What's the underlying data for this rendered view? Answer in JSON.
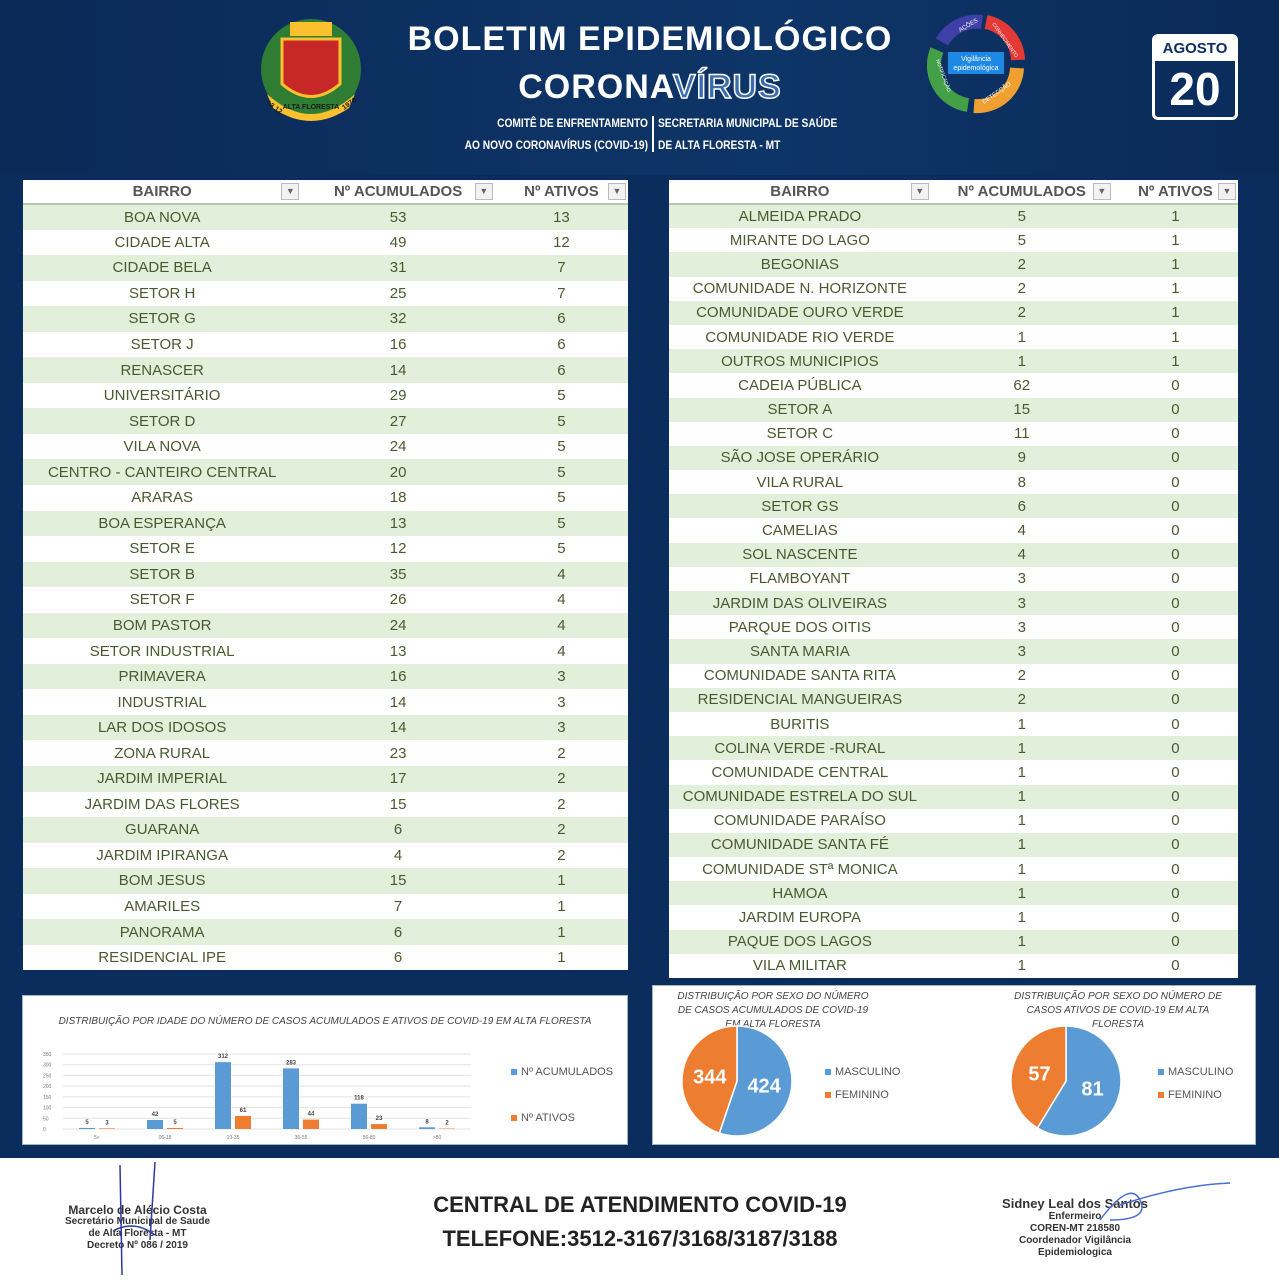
{
  "header": {
    "title_line1": "BOLETIM EPIDEMIOLÓGICO",
    "title_line2_solid": "CORONA",
    "title_line2_outline": "VÍRUS",
    "sub_left": [
      "COMITÊ DE ENFRENTAMENTO",
      "AO NOVO CORONAVÍRUS (COVID-19)"
    ],
    "sub_right": [
      "SECRETARIA MUNICIPAL DE SAÚDE",
      "DE ALTA FLORESTA - MT"
    ],
    "crest_text": [
      "1976",
      "ALTA FLORESTA",
      "13 12"
    ],
    "cycle_center": "Vigilância epidemológica",
    "cycle_steps": [
      "AÇÕES",
      "CONHECIMENTO",
      "DETECÇÃO",
      "NOTIFICAÇÃO"
    ],
    "calendar": {
      "month": "AGOSTO",
      "day": "20"
    }
  },
  "table_headers": [
    "BAIRRO",
    "Nº ACUMULADOS",
    "Nº ATIVOS"
  ],
  "table_left": [
    [
      "BOA NOVA",
      53,
      13
    ],
    [
      "CIDADE ALTA",
      49,
      12
    ],
    [
      "CIDADE BELA",
      31,
      7
    ],
    [
      "SETOR H",
      25,
      7
    ],
    [
      "SETOR G",
      32,
      6
    ],
    [
      "SETOR J",
      16,
      6
    ],
    [
      "RENASCER",
      14,
      6
    ],
    [
      "UNIVERSITÁRIO",
      29,
      5
    ],
    [
      "SETOR D",
      27,
      5
    ],
    [
      "VILA NOVA",
      24,
      5
    ],
    [
      "CENTRO - CANTEIRO CENTRAL",
      20,
      5
    ],
    [
      "ARARAS",
      18,
      5
    ],
    [
      "BOA ESPERANÇA",
      13,
      5
    ],
    [
      "SETOR E",
      12,
      5
    ],
    [
      "SETOR B",
      35,
      4
    ],
    [
      "SETOR F",
      26,
      4
    ],
    [
      "BOM PASTOR",
      24,
      4
    ],
    [
      "SETOR INDUSTRIAL",
      13,
      4
    ],
    [
      "PRIMAVERA",
      16,
      3
    ],
    [
      "INDUSTRIAL",
      14,
      3
    ],
    [
      "LAR DOS IDOSOS",
      14,
      3
    ],
    [
      "ZONA RURAL",
      23,
      2
    ],
    [
      "JARDIM IMPERIAL",
      17,
      2
    ],
    [
      "JARDIM DAS FLORES",
      15,
      2
    ],
    [
      "GUARANA",
      6,
      2
    ],
    [
      "JARDIM IPIRANGA",
      4,
      2
    ],
    [
      "BOM JESUS",
      15,
      1
    ],
    [
      "AMARILES",
      7,
      1
    ],
    [
      "PANORAMA",
      6,
      1
    ],
    [
      "RESIDENCIAL IPE",
      6,
      1
    ]
  ],
  "table_right": [
    [
      "ALMEIDA PRADO",
      5,
      1
    ],
    [
      "MIRANTE DO LAGO",
      5,
      1
    ],
    [
      "BEGONIAS",
      2,
      1
    ],
    [
      "COMUNIDADE N. HORIZONTE",
      2,
      1
    ],
    [
      "COMUNIDADE OURO VERDE",
      2,
      1
    ],
    [
      "COMUNIDADE RIO VERDE",
      1,
      1
    ],
    [
      "OUTROS MUNICIPIOS",
      1,
      1
    ],
    [
      "CADEIA PÚBLICA",
      62,
      0
    ],
    [
      "SETOR A",
      15,
      0
    ],
    [
      "SETOR C",
      11,
      0
    ],
    [
      "SÃO JOSE OPERÁRIO",
      9,
      0
    ],
    [
      "VILA RURAL",
      8,
      0
    ],
    [
      "SETOR GS",
      6,
      0
    ],
    [
      "CAMELIAS",
      4,
      0
    ],
    [
      "SOL NASCENTE",
      4,
      0
    ],
    [
      "FLAMBOYANT",
      3,
      0
    ],
    [
      "JARDIM DAS OLIVEIRAS",
      3,
      0
    ],
    [
      "PARQUE DOS OITIS",
      3,
      0
    ],
    [
      "SANTA MARIA",
      3,
      0
    ],
    [
      "COMUNIDADE SANTA RITA",
      2,
      0
    ],
    [
      "RESIDENCIAL MANGUEIRAS",
      2,
      0
    ],
    [
      "BURITIS",
      1,
      0
    ],
    [
      "COLINA VERDE -RURAL",
      1,
      0
    ],
    [
      "COMUNIDADE CENTRAL",
      1,
      0
    ],
    [
      "COMUNIDADE ESTRELA DO SUL",
      1,
      0
    ],
    [
      "COMUNIDADE PARAÍSO",
      1,
      0
    ],
    [
      "COMUNIDADE SANTA FÉ",
      1,
      0
    ],
    [
      "COMUNIDADE STª MONICA",
      1,
      0
    ],
    [
      "HAMOA",
      1,
      0
    ],
    [
      "JARDIM EUROPA",
      1,
      0
    ],
    [
      "PAQUE DOS LAGOS",
      1,
      0
    ],
    [
      "VILA MILITAR",
      1,
      0
    ]
  ],
  "colors": {
    "blue": "#5b9bd5",
    "orange": "#ed7d31",
    "background": "#0b2d5e",
    "row_green": "#e2efda"
  },
  "chart_data": [
    {
      "type": "bar",
      "title": "DISTRIBUIÇÃO POR IDADE DO NÚMERO DE CASOS ACUMULADOS E ATIVOS DE COVID-19 EM ALTA FLORESTA",
      "categories": [
        "5<",
        "06-18",
        "19-35",
        "36-55",
        "56-80",
        ">80"
      ],
      "series": [
        {
          "name": "Nº ACUMULADOS",
          "values": [
            5,
            42,
            312,
            283,
            118,
            8
          ]
        },
        {
          "name": "Nº ATIVOS",
          "values": [
            3,
            5,
            61,
            44,
            23,
            2
          ]
        }
      ],
      "yticks": [
        0,
        50,
        100,
        150,
        200,
        250,
        300,
        350
      ],
      "ylim": [
        0,
        350
      ],
      "grid": true,
      "legend": "right"
    },
    {
      "type": "pie",
      "title": "DISTRIBUIÇÃO POR SEXO DO NÚMERO DE CASOS ACUMULADOS DE COVID-19 EM ALTA FLORESTA",
      "labels": [
        "MASCULINO",
        "FEMININO"
      ],
      "values": [
        424,
        344
      ],
      "legend": "right"
    },
    {
      "type": "pie",
      "title": "DISTRIBUIÇÃO POR SEXO DO NÚMERO DE CASOS ATIVOS DE COVID-19 EM ALTA FLORESTA",
      "labels": [
        "MASCULINO",
        "FEMININO"
      ],
      "values": [
        81,
        57
      ],
      "legend": "right"
    }
  ],
  "footer": {
    "left_sig": [
      "Marcelo de Alécio Costa",
      "Secretário Municipal de Saude",
      "de Alta Floresta - MT",
      "Decreto Nº 086 / 2019"
    ],
    "central": "CENTRAL  DE ATENDIMENTO COVID-19",
    "phone": "TELEFONE:3512-3167/3168/3187/3188",
    "right_sig": [
      "Sidney Leal dos Santos",
      "Enfermeiro",
      "COREN-MT 218580",
      "Coordenador Vigilância Epidemiologica"
    ]
  }
}
